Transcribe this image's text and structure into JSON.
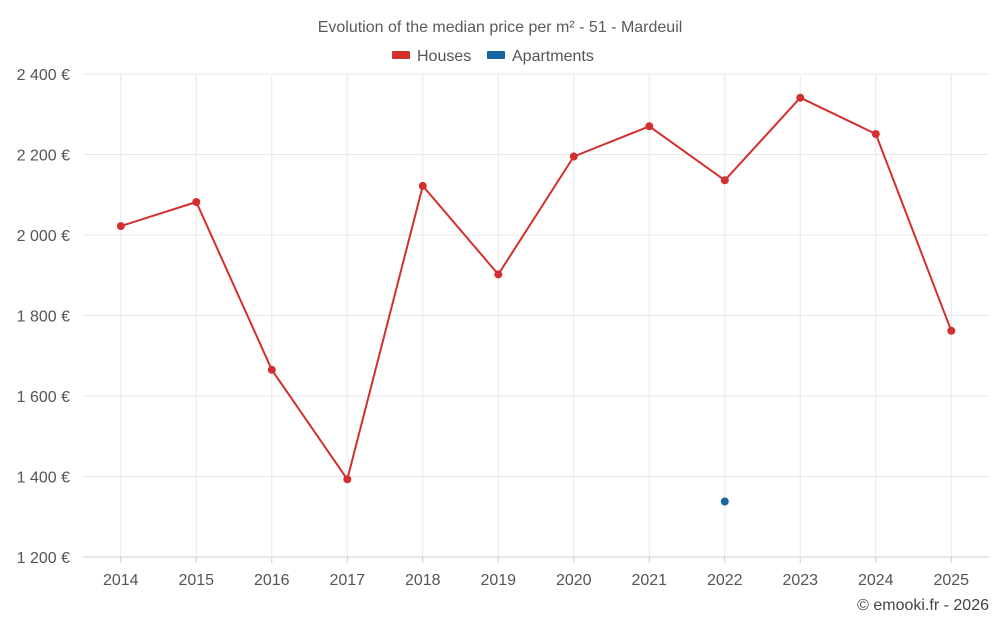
{
  "chart_data": {
    "type": "line",
    "title": "Evolution of the median price per m² - 51 - Mardeuil",
    "xlabel": "",
    "ylabel": "",
    "categories": [
      "2014",
      "2015",
      "2016",
      "2017",
      "2018",
      "2019",
      "2020",
      "2021",
      "2022",
      "2023",
      "2024",
      "2025"
    ],
    "y_ticks": [
      "1 200 €",
      "1 400 €",
      "1 600 €",
      "1 800 €",
      "2 000 €",
      "2 200 €",
      "2 400 €"
    ],
    "ylim": [
      1200,
      2400
    ],
    "grid": true,
    "legend_position": "top-center",
    "series": [
      {
        "name": "Houses",
        "color": "#d32f2f",
        "values": [
          2022,
          2082,
          1665,
          1393,
          2122,
          1902,
          2195,
          2270,
          2136,
          2341,
          2251,
          1762
        ]
      },
      {
        "name": "Apartments",
        "color": "#1565a0",
        "values": [
          null,
          null,
          null,
          null,
          null,
          null,
          null,
          null,
          1338,
          null,
          null,
          null
        ]
      }
    ]
  },
  "credit": "© emooki.fr - 2026"
}
